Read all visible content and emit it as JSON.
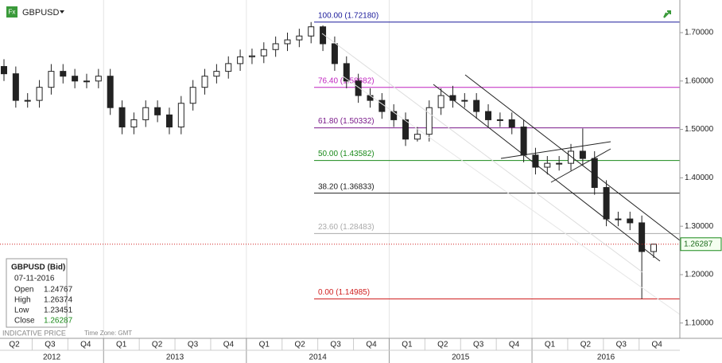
{
  "header": {
    "symbol": "GBPUSD"
  },
  "chart_data": {
    "type": "candlestick",
    "open": [
      1.63,
      1.615,
      1.56,
      1.56,
      1.587,
      1.62,
      1.61,
      1.6,
      1.6,
      1.61,
      1.545,
      1.505,
      1.52,
      1.545,
      1.53,
      1.505,
      1.554,
      1.587,
      1.61,
      1.62,
      1.636,
      1.65,
      1.652,
      1.665,
      1.677,
      1.685,
      1.693,
      1.712,
      1.677,
      1.636,
      1.6,
      1.57,
      1.56,
      1.537,
      1.52,
      1.48,
      1.49,
      1.545,
      1.57,
      1.56,
      1.56,
      1.537,
      1.52,
      1.52,
      1.505,
      1.447,
      1.422,
      1.43,
      1.43,
      1.455,
      1.44,
      1.38,
      1.315,
      1.315,
      1.307,
      1.24767
    ],
    "high": [
      1.645,
      1.63,
      1.575,
      1.602,
      1.635,
      1.635,
      1.625,
      1.615,
      1.625,
      1.625,
      1.56,
      1.535,
      1.56,
      1.56,
      1.545,
      1.569,
      1.602,
      1.625,
      1.635,
      1.651,
      1.665,
      1.667,
      1.68,
      1.692,
      1.7,
      1.708,
      1.7218,
      1.715,
      1.692,
      1.651,
      1.615,
      1.585,
      1.575,
      1.552,
      1.535,
      1.505,
      1.56,
      1.585,
      1.59,
      1.575,
      1.575,
      1.552,
      1.535,
      1.535,
      1.52,
      1.462,
      1.445,
      1.445,
      1.47,
      1.502,
      1.455,
      1.395,
      1.33,
      1.33,
      1.322,
      1.26374
    ],
    "low": [
      1.6,
      1.545,
      1.545,
      1.545,
      1.572,
      1.595,
      1.585,
      1.585,
      1.585,
      1.53,
      1.49,
      1.49,
      1.505,
      1.515,
      1.49,
      1.49,
      1.539,
      1.572,
      1.595,
      1.605,
      1.621,
      1.635,
      1.637,
      1.65,
      1.662,
      1.67,
      1.678,
      1.662,
      1.621,
      1.585,
      1.555,
      1.545,
      1.522,
      1.505,
      1.4658,
      1.475,
      1.475,
      1.53,
      1.545,
      1.545,
      1.522,
      1.505,
      1.505,
      1.49,
      1.432,
      1.407,
      1.407,
      1.415,
      1.415,
      1.425,
      1.365,
      1.3,
      1.3,
      1.292,
      1.14985,
      1.23451
    ],
    "close": [
      1.615,
      1.56,
      1.56,
      1.587,
      1.62,
      1.61,
      1.6,
      1.6,
      1.61,
      1.545,
      1.505,
      1.52,
      1.545,
      1.53,
      1.505,
      1.554,
      1.587,
      1.61,
      1.62,
      1.636,
      1.65,
      1.652,
      1.665,
      1.677,
      1.685,
      1.693,
      1.712,
      1.677,
      1.636,
      1.6,
      1.57,
      1.56,
      1.537,
      1.52,
      1.48,
      1.49,
      1.545,
      1.57,
      1.56,
      1.56,
      1.537,
      1.52,
      1.52,
      1.505,
      1.447,
      1.422,
      1.43,
      1.43,
      1.455,
      1.44,
      1.38,
      1.315,
      1.315,
      1.307,
      1.24767,
      1.26287
    ],
    "ylim": [
      1.0684,
      1.7674
    ],
    "yticks": [
      {
        "value": 1.1,
        "label": "1.10000"
      },
      {
        "value": 1.2,
        "label": "1.20000"
      },
      {
        "value": 1.3,
        "label": "1.30000"
      },
      {
        "value": 1.4,
        "label": "1.40000"
      },
      {
        "value": 1.5,
        "label": "1.50000"
      },
      {
        "value": 1.6,
        "label": "1.60000"
      },
      {
        "value": 1.7,
        "label": "1.70000"
      }
    ],
    "quarters": [
      "Q2",
      "Q3",
      "Q4",
      "Q1",
      "Q2",
      "Q3",
      "Q4",
      "Q1",
      "Q2",
      "Q3",
      "Q4",
      "Q1",
      "Q2",
      "Q3",
      "Q4",
      "Q1",
      "Q2",
      "Q3",
      "Q4"
    ],
    "years": [
      "2012",
      "2013",
      "2014",
      "2015",
      "2016"
    ],
    "fib_levels": [
      {
        "label": "100.00 (1.72180)",
        "value": 1.7218,
        "color": "#1a1a9a"
      },
      {
        "label": "76.40 (1.58682)",
        "value": 1.58682,
        "color": "#c024c0"
      },
      {
        "label": "61.80 (1.50332)",
        "value": 1.50332,
        "color": "#7a1a8a"
      },
      {
        "label": "50.00 (1.43582)",
        "value": 1.43582,
        "color": "#1a8a1a"
      },
      {
        "label": "38.20 (1.36833)",
        "value": 1.36833,
        "color": "#222222"
      },
      {
        "label": "23.60 (1.28483)",
        "value": 1.28483,
        "color": "#aaaaaa"
      },
      {
        "label": "0.00 (1.14985)",
        "value": 1.14985,
        "color": "#d02020"
      }
    ],
    "info_box": {
      "title": "GBPUSD (Bid)",
      "date": "07-11-2016",
      "labels": [
        "Open",
        "High",
        "Low",
        "Close"
      ]
    },
    "footer": [
      "INDICATIVE PRICE",
      "Time Zone: GMT"
    ]
  }
}
